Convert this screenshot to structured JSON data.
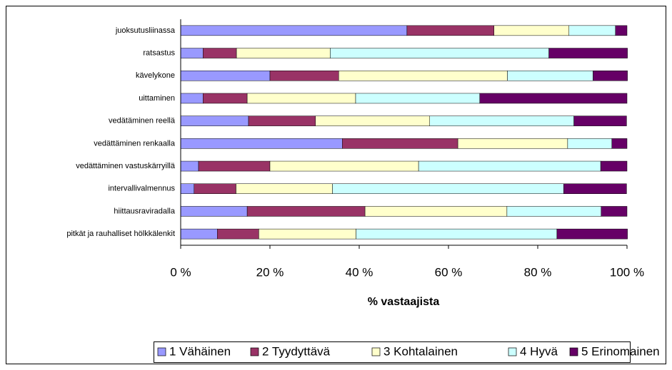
{
  "chart_data": {
    "type": "bar",
    "orientation": "horizontal",
    "stacked": true,
    "x_label": "% vastaajista",
    "categories": [
      "juoksutusliinassa",
      "ratsastus",
      "kävelykone",
      "uittaminen",
      "vedätäminen reellä",
      "vedättäminen renkaalla",
      "vedättäminen vastuskärryillä",
      "intervallivalmennus",
      "hiittausraviradalla",
      "pitkät ja rauhalliset hölkkälenkit"
    ],
    "series": [
      {
        "name": "1 Vähäinen",
        "color": "#9999ff",
        "values": [
          50.7,
          5.0,
          20.0,
          5.0,
          15.2,
          36.2,
          4.0,
          3.0,
          14.9,
          8.2
        ]
      },
      {
        "name": "2 Tyydyttävä",
        "color": "#993366",
        "values": [
          19.5,
          7.5,
          15.4,
          9.9,
          15.0,
          25.9,
          16.0,
          9.4,
          26.4,
          9.3
        ]
      },
      {
        "name": "3 Kohtalainen",
        "color": "#ffffcc",
        "values": [
          16.8,
          21.0,
          37.8,
          24.3,
          25.6,
          24.6,
          33.3,
          21.6,
          31.8,
          21.8
        ]
      },
      {
        "name": "4 Hyvä",
        "color": "#ccffff",
        "values": [
          10.4,
          49.0,
          19.2,
          27.8,
          32.3,
          9.9,
          40.8,
          51.8,
          21.1,
          45.0
        ]
      },
      {
        "name": "5 Erinomainen",
        "color": "#660066",
        "values": [
          2.6,
          17.6,
          7.7,
          33.0,
          11.8,
          3.4,
          5.9,
          14.1,
          5.8,
          15.8
        ]
      }
    ],
    "xlim": [
      0,
      100
    ],
    "xticks": [
      {
        "value": 0,
        "label": "0 %"
      },
      {
        "value": 20,
        "label": "20 %"
      },
      {
        "value": 40,
        "label": "40 %"
      },
      {
        "value": 60,
        "label": "60 %"
      },
      {
        "value": 80,
        "label": "80 %"
      },
      {
        "value": 100,
        "label": "100 %"
      }
    ],
    "legend": "bottom"
  }
}
